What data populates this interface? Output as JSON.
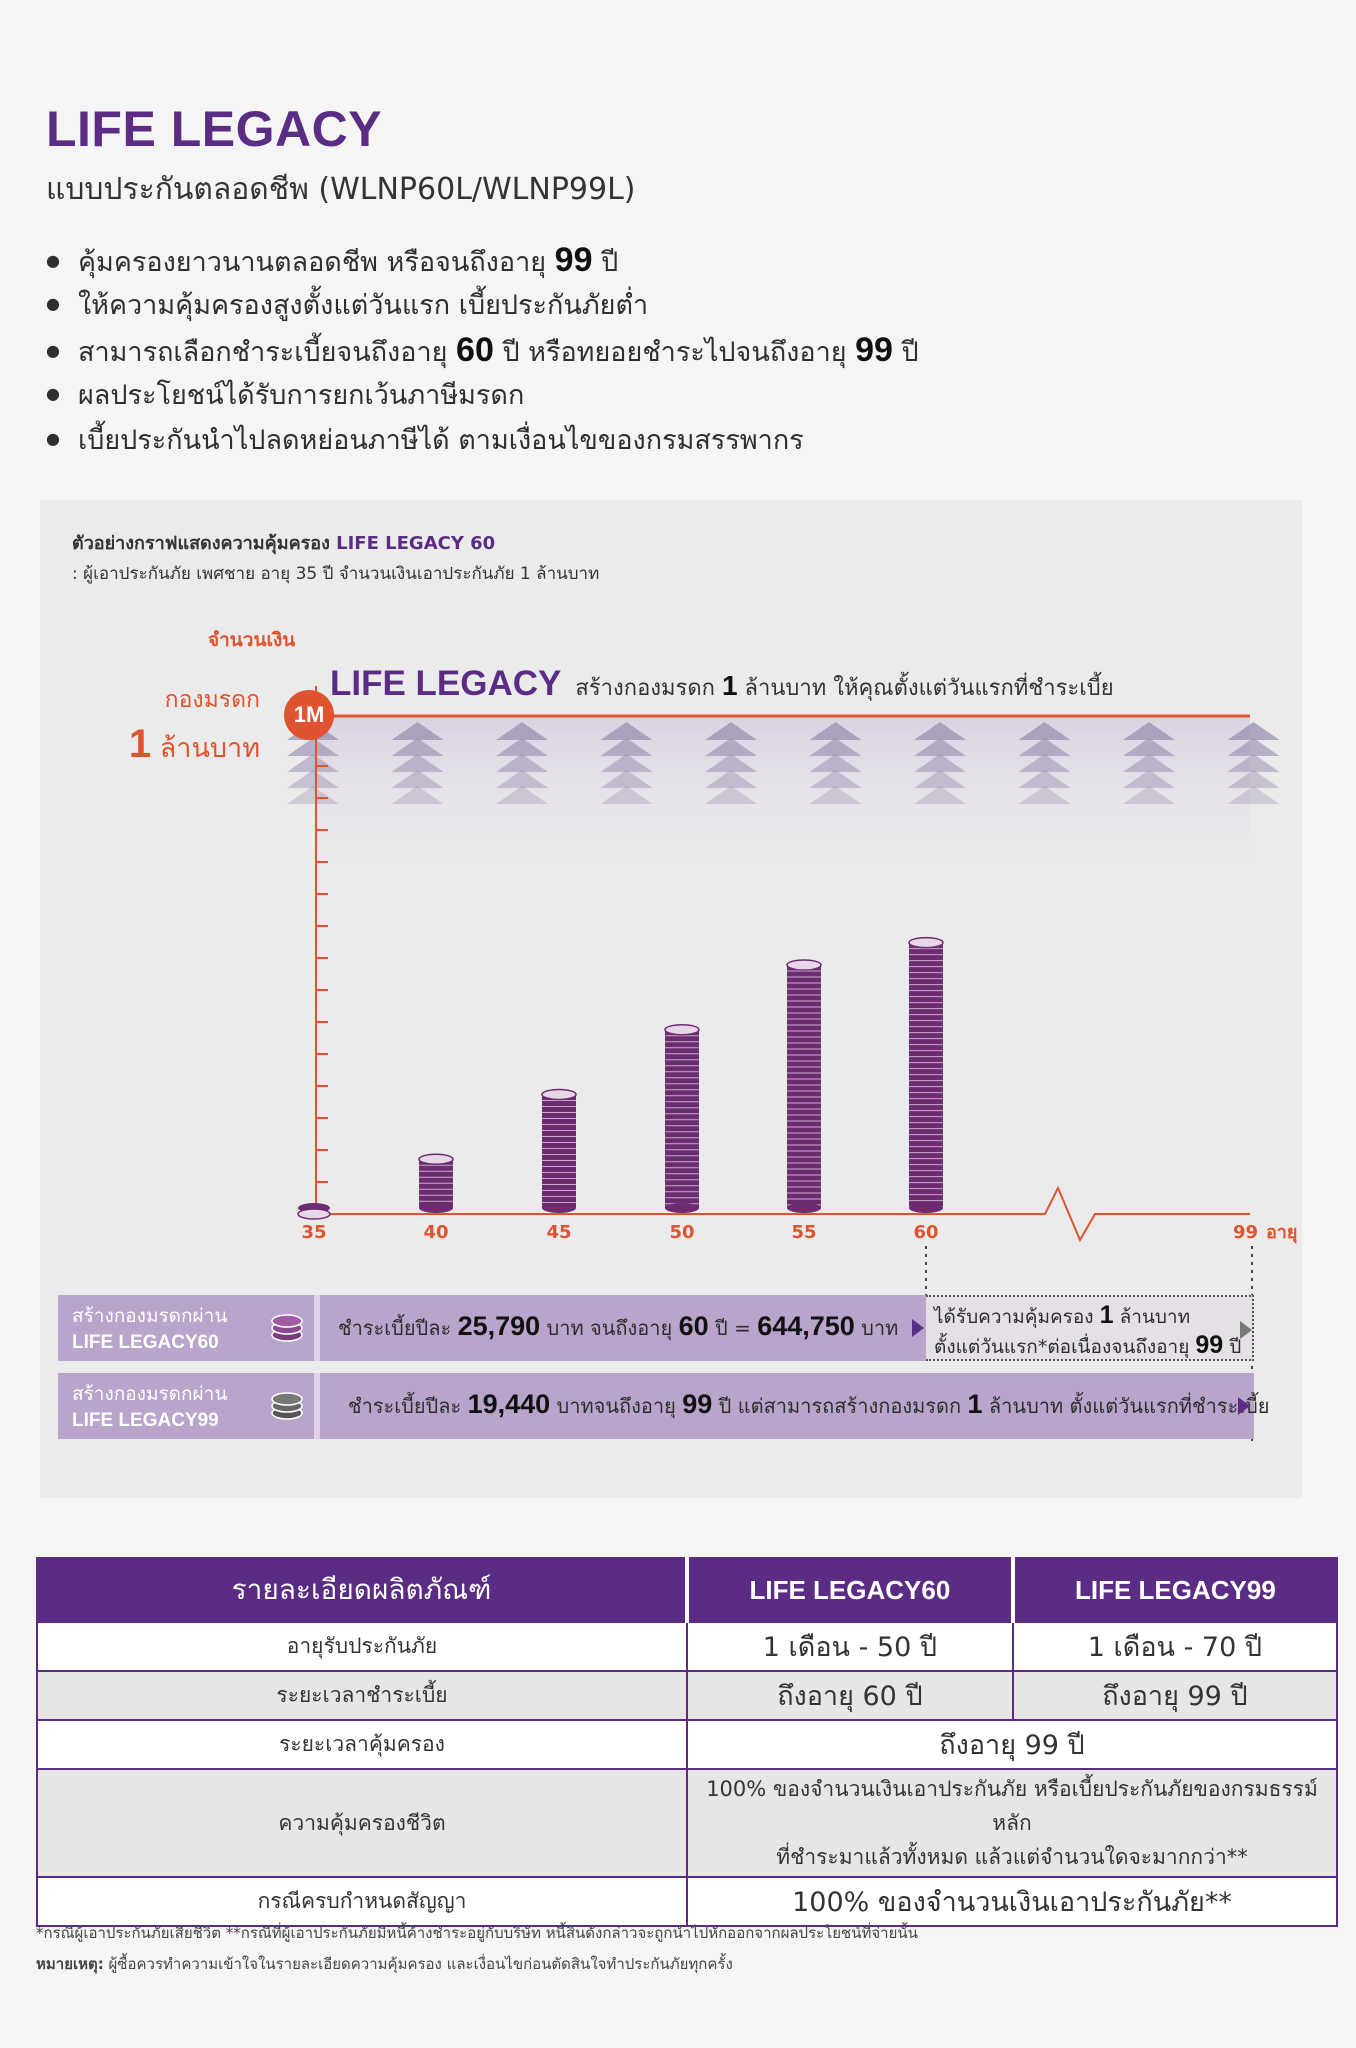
{
  "header": {
    "title": "LIFE LEGACY",
    "subtitle": "แบบประกันตลอดชีพ (WLNP60L/WLNP99L)"
  },
  "bullets": [
    {
      "pre": "คุ้มครองยาวนานตลอดชีพ หรือจนถึงอายุ ",
      "num": "99",
      "post": " ปี"
    },
    {
      "pre": "ให้ความคุ้มครองสูงตั้งแต่วันแรก เบี้ยประกันภัยต่ำ",
      "num": "",
      "post": ""
    },
    {
      "pre": "สามารถเลือกชำระเบี้ยจนถึงอายุ ",
      "num": "60",
      "post": " ปี หรือทยอยชำระไปจนถึงอายุ ",
      "num2": "99",
      "post2": " ปี"
    },
    {
      "pre": "ผลประโยชน์ได้รับการยกเว้นภาษีมรดก",
      "num": "",
      "post": ""
    },
    {
      "pre": "เบี้ยประกันนำไปลดหย่อนภาษีได้ ตามเงื่อนไขของกรมสรรพากร",
      "num": "",
      "post": ""
    }
  ],
  "chart_caption": {
    "line1_pre": "ตัวอย่างกราฟแสดงความคุ้มครอง ",
    "line1_hl": "LIFE LEGACY 60",
    "line2": ": ผู้เอาประกันภัย เพศชาย อายุ 35 ปี จำนวนเงินเอาประกันภัย 1 ล้านบาท"
  },
  "chart_labels": {
    "ylabel": "จำนวนเงิน",
    "fund_l1": "กองมรดก",
    "fund_num": "1",
    "fund_l2": " ล้านบาท",
    "badge": "1M",
    "headline_brand": "LIFE LEGACY",
    "headline_pre": "สร้างกองมรดก ",
    "headline_num": "1",
    "headline_post": " ล้านบาท ให้คุณตั้งแต่วันแรกที่ชำระเบี้ย",
    "x_unit": "อายุ"
  },
  "chart_data": {
    "type": "bar",
    "title": "",
    "xlabel": "อายุ",
    "ylabel": "จำนวนเงิน",
    "categories": [
      "35",
      "40",
      "45",
      "50",
      "55",
      "60"
    ],
    "x_axis_end": "99",
    "ylim": [
      0,
      1000000
    ],
    "values": [
      0,
      110000,
      240000,
      370000,
      500000,
      545000
    ],
    "coverage_line": 1000000,
    "coverage_label": "1M",
    "colors": {
      "bar": "#6b2d6f",
      "axis": "#e0532f",
      "coverage": "#e0532f",
      "arrows": "#9b8fb0"
    }
  },
  "bands": {
    "b1_left_th": "สร้างกองมรดกผ่าน",
    "b1_left_en": "LIFE LEGACY60",
    "b1_pre": "ชำระเบี้ยปีละ ",
    "b1_amount": "25,790",
    "b1_mid": " บาท จนถึงอายุ ",
    "b1_age": "60",
    "b1_mid2": " ปี = ",
    "b1_total": "644,750",
    "b1_post": " บาท",
    "b1r_l1_pre": "ได้รับความคุ้มครอง ",
    "b1r_l1_num": "1",
    "b1r_l1_post": " ล้านบาท",
    "b1r_l2_pre": "ตั้งแต่วันแรก*ต่อเนื่องจนถึงอายุ ",
    "b1r_l2_num": "99",
    "b1r_l2_post": " ปี",
    "b2_left_th": "สร้างกองมรดกผ่าน",
    "b2_left_en": "LIFE LEGACY99",
    "b2_pre": "ชำระเบี้ยปีละ ",
    "b2_amount": "19,440",
    "b2_mid": " บาทจนถึงอายุ ",
    "b2_age": "99",
    "b2_mid2": " ปี แต่สามารถสร้างกองมรดก ",
    "b2_num": "1",
    "b2_post": " ล้านบาท ตั้งแต่วันแรกที่ชำระเบี้ย"
  },
  "table": {
    "headers": [
      "รายละเอียดผลิตภัณฑ์",
      "LIFE LEGACY60",
      "LIFE LEGACY99"
    ],
    "rows": [
      {
        "label": "อายุรับประกันภัย",
        "c1": "1 เดือน - 50 ปี",
        "c2": "1 เดือน - 70 ปี"
      },
      {
        "label": "ระยะเวลาชำระเบี้ย",
        "c1": "ถึงอายุ 60 ปี",
        "c2": "ถึงอายุ 99 ปี"
      },
      {
        "label": "ระยะเวลาคุ้มครอง",
        "merged": "ถึงอายุ 99 ปี"
      },
      {
        "label": "ความคุ้มครองชีวิต",
        "merged_l1": "100% ของจำนวนเงินเอาประกันภัย หรือเบี้ยประกันภัยของกรมธรรม์หลัก",
        "merged_l2": "ที่ชำระมาแล้วทั้งหมด แล้วแต่จำนวนใดจะมากกว่า**"
      },
      {
        "label": "กรณีครบกำหนดสัญญา",
        "merged": "100% ของจำนวนเงินเอาประกันภัย**"
      }
    ]
  },
  "footnotes": {
    "line1": "*กรณีผู้เอาประกันภัยเสียชีวิต **กรณีที่ผู้เอาประกันภัยมีหนี้ค้างชำระอยู่กับบริษัท หนี้สินดังกล่าวจะถูกนำไปหักออกจากผลประโยชน์ที่จ่ายนั้น",
    "note_label": "หมายเหตุ:",
    "note_text": " ผู้ซื้อควรทำความเข้าใจในรายละเอียดความคุ้มครอง และเงื่อนไขก่อนตัดสินใจทำประกันภัยทุกครั้ง"
  }
}
